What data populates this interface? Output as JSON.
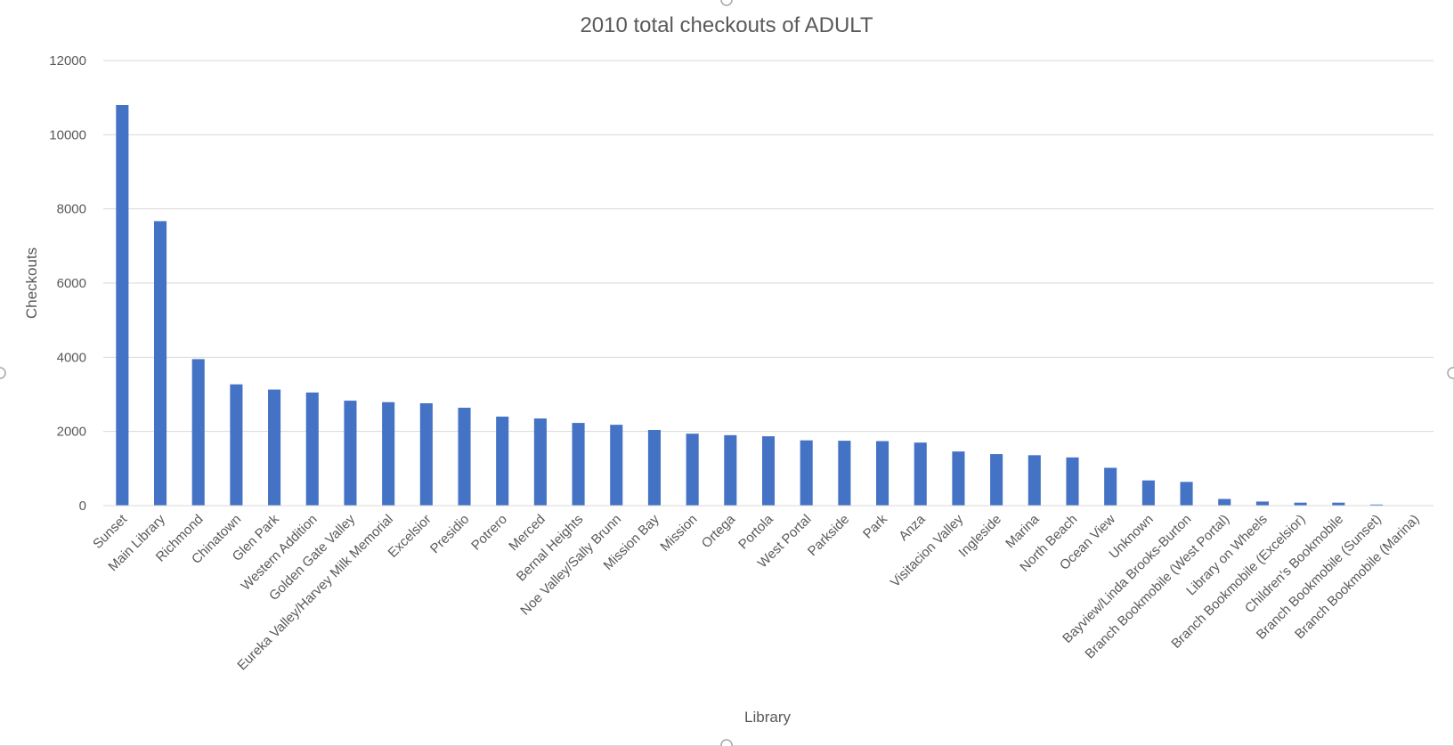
{
  "chart_data": {
    "type": "bar",
    "title": "2010 total checkouts of ADULT",
    "xlabel": "Library",
    "ylabel": "Checkouts",
    "ylim": [
      0,
      12000
    ],
    "yticks": [
      0,
      2000,
      4000,
      6000,
      8000,
      10000,
      12000
    ],
    "grid": true,
    "legend": "none",
    "bar_color": "#4472c4",
    "categories": [
      "Sunset",
      "Main Library",
      "Richmond",
      "Chinatown",
      "Glen Park",
      "Western Addition",
      "Golden Gate Valley",
      "Eureka Valley/Harvey Milk Memorial",
      "Excelsior",
      "Presidio",
      "Potrero",
      "Merced",
      "Bernal Heights",
      "Noe Valley/Sally Brunn",
      "Mission Bay",
      "Mission",
      "Ortega",
      "Portola",
      "West Portal",
      "Parkside",
      "Park",
      "Anza",
      "Visitacion Valley",
      "Ingleside",
      "Marina",
      "North Beach",
      "Ocean View",
      "Unknown",
      "Bayview/Linda Brooks-Burton",
      "Branch Bookmobile (West Portal)",
      "Library on Wheels",
      "Branch Bookmobile (Excelsior)",
      "Children's Bookmobile",
      "Branch Bookmobile (Sunset)",
      "Branch Bookmobile (Marina)"
    ],
    "values": [
      10800,
      7670,
      3950,
      3270,
      3130,
      3050,
      2830,
      2790,
      2760,
      2640,
      2400,
      2350,
      2230,
      2180,
      2040,
      1940,
      1900,
      1870,
      1760,
      1750,
      1740,
      1700,
      1460,
      1390,
      1360,
      1300,
      1020,
      680,
      640,
      180,
      110,
      80,
      80,
      30,
      5
    ]
  }
}
